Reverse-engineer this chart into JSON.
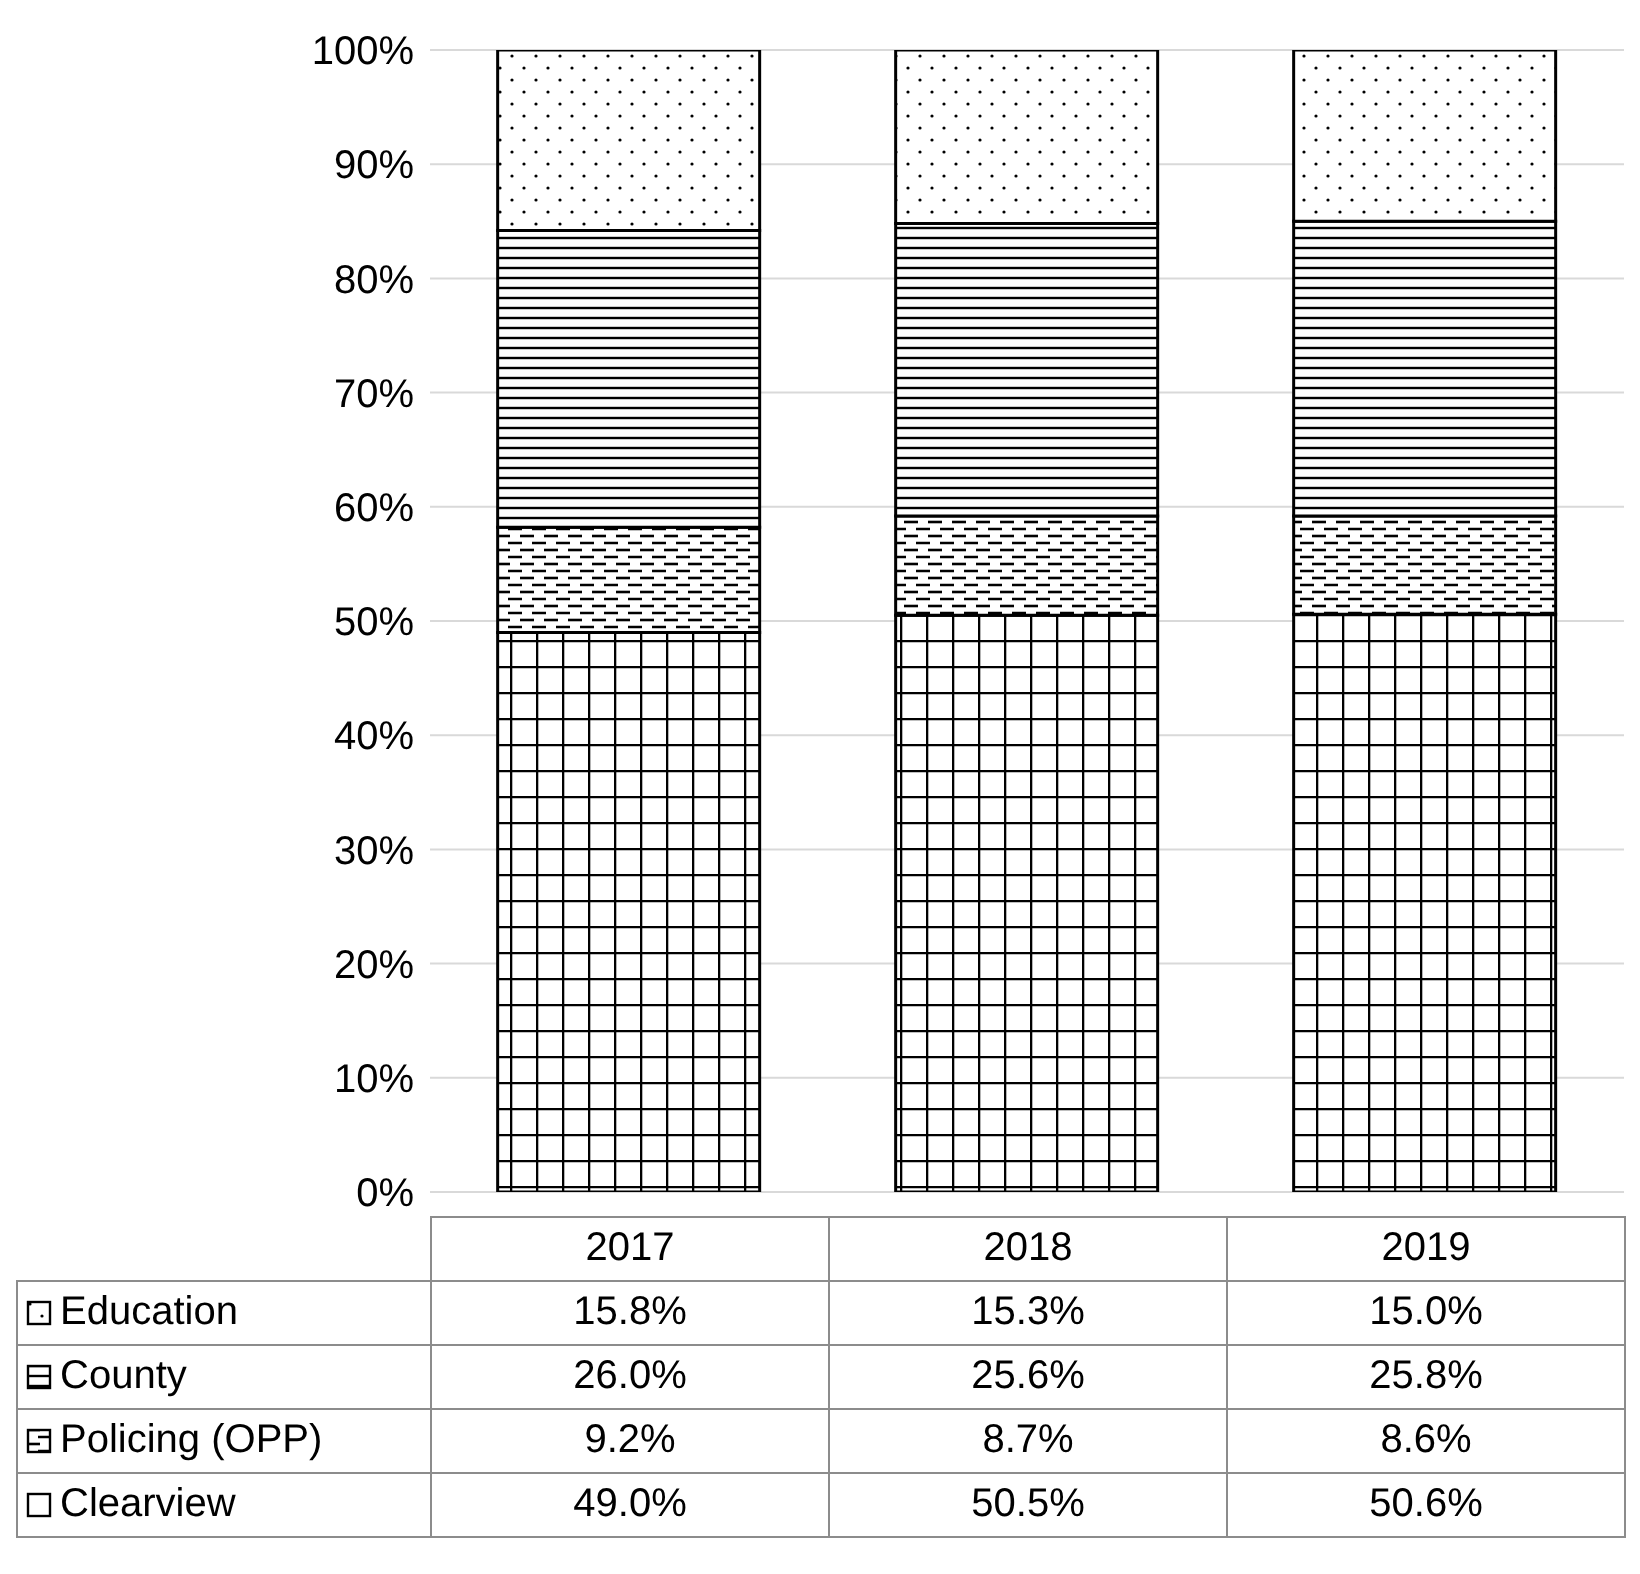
{
  "chart_data": {
    "type": "bar",
    "stacked": true,
    "categories": [
      "2017",
      "2018",
      "2019"
    ],
    "series": [
      {
        "name": "Clearview",
        "color": "#000000",
        "values": [
          49.0,
          50.5,
          50.6
        ],
        "value_labels": [
          "49.0%",
          "50.5%",
          "50.6%"
        ]
      },
      {
        "name": "Policing (OPP)",
        "color": "#000000",
        "values": [
          9.2,
          8.7,
          8.6
        ],
        "value_labels": [
          "9.2%",
          "8.7%",
          "8.6%"
        ]
      },
      {
        "name": "County",
        "color": "#000000",
        "values": [
          26.0,
          25.6,
          25.8
        ],
        "value_labels": [
          "26.0%",
          "25.6%",
          "25.8%"
        ]
      },
      {
        "name": "Education",
        "color": "#000000",
        "values": [
          15.8,
          15.3,
          15.0
        ],
        "value_labels": [
          "15.8%",
          "15.3%",
          "15.0%"
        ]
      }
    ],
    "ylim": [
      0,
      100
    ],
    "yticks": [
      {
        "value": 0,
        "label": "0%"
      },
      {
        "value": 10,
        "label": "10%"
      },
      {
        "value": 20,
        "label": "20%"
      },
      {
        "value": 30,
        "label": "30%"
      },
      {
        "value": 40,
        "label": "40%"
      },
      {
        "value": 50,
        "label": "50%"
      },
      {
        "value": 60,
        "label": "60%"
      },
      {
        "value": 70,
        "label": "70%"
      },
      {
        "value": 80,
        "label": "80%"
      },
      {
        "value": 90,
        "label": "90%"
      },
      {
        "value": 100,
        "label": "100%"
      }
    ],
    "grid": "y",
    "legend": "bottom"
  }
}
